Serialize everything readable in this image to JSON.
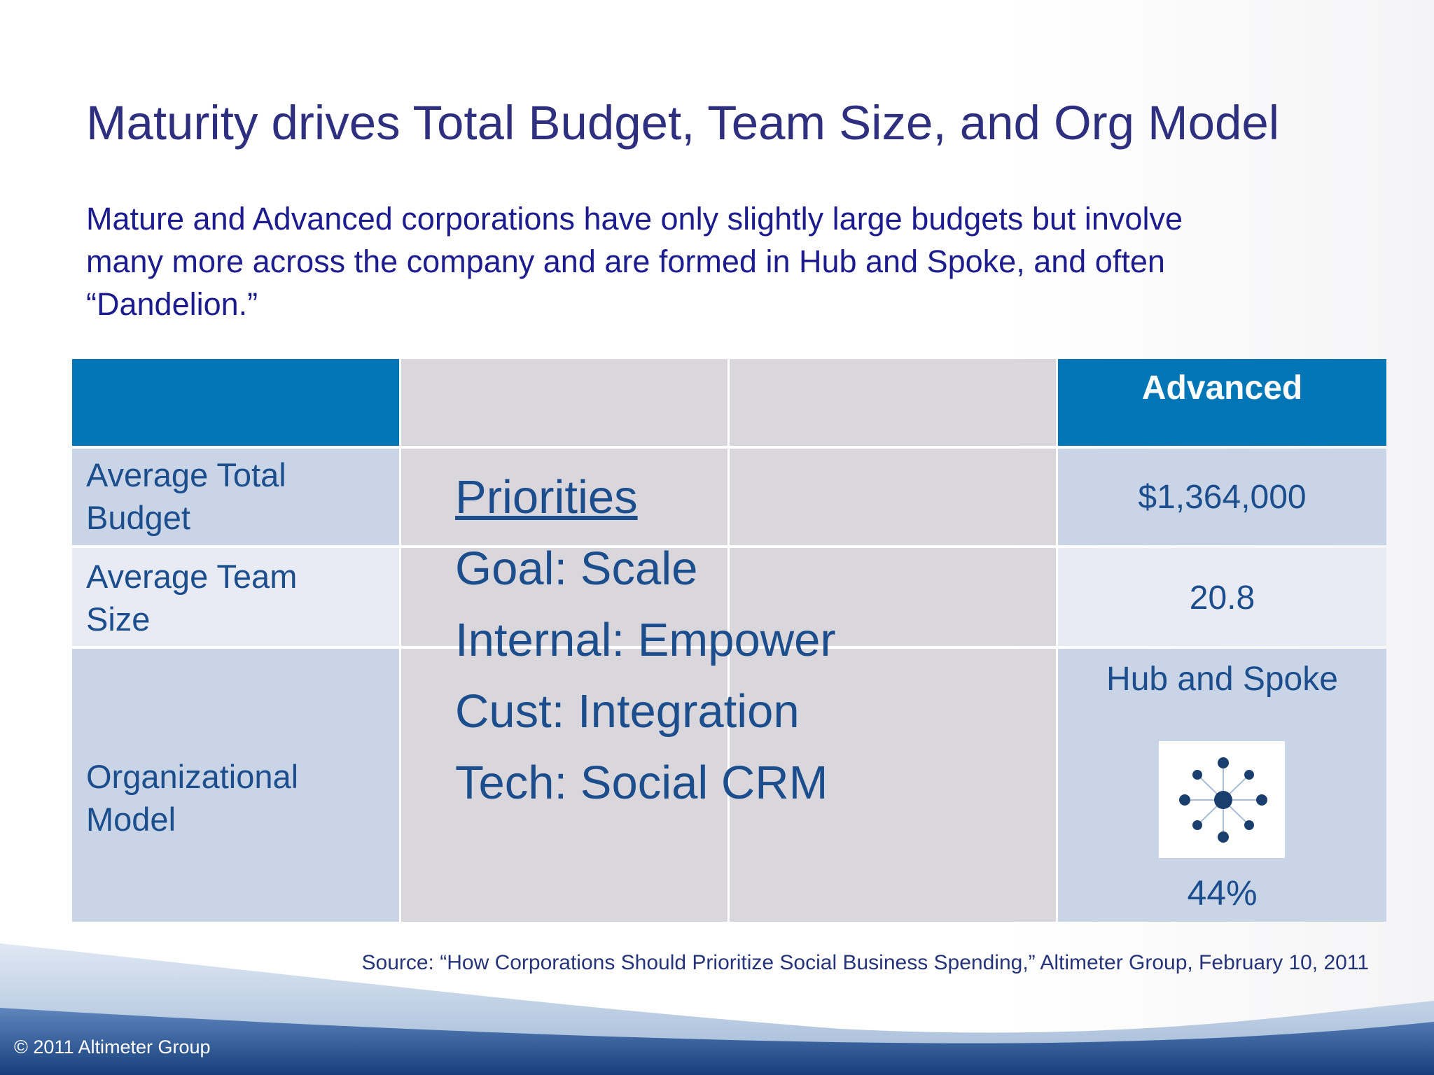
{
  "slide": {
    "title": "Maturity drives Total Budget, Team Size, and Org Model",
    "subtitle_lines": [
      "Mature and Advanced corporations have only slightly large budgets but involve",
      "many more across the company and are formed in Hub and Spoke, and often",
      "“Dandelion.”"
    ]
  },
  "table": {
    "advanced_header": "Advanced",
    "rows": [
      {
        "label_lines": [
          "Average Total",
          "Budget"
        ],
        "advanced": "$1,364,000"
      },
      {
        "label_lines": [
          "Average Team",
          "Size"
        ],
        "advanced": "20.8"
      },
      {
        "label_lines": [
          "Organizational",
          "Model"
        ],
        "advanced_title": "Hub and Spoke",
        "advanced_icon": "hub-and-spoke-icon",
        "advanced_pct": "44%"
      }
    ]
  },
  "priorities": {
    "heading": "Priorities",
    "items": [
      "Goal: Scale",
      "Internal: Empower",
      "Cust: Integration",
      "Tech: Social CRM"
    ]
  },
  "source": "Source: “How Corporations Should Prioritize Social Business Spending,” Altimeter Group, February 10, 2011",
  "copyright": "© 2011 Altimeter Group",
  "colors": {
    "title": "#2e2f7f",
    "header_blue": "#0076b6",
    "row_blue": "#c9d5e7",
    "row_light": "#e8ebf3",
    "mid_gray": "#d9d7db",
    "text_blue": "#1c4d8c"
  }
}
